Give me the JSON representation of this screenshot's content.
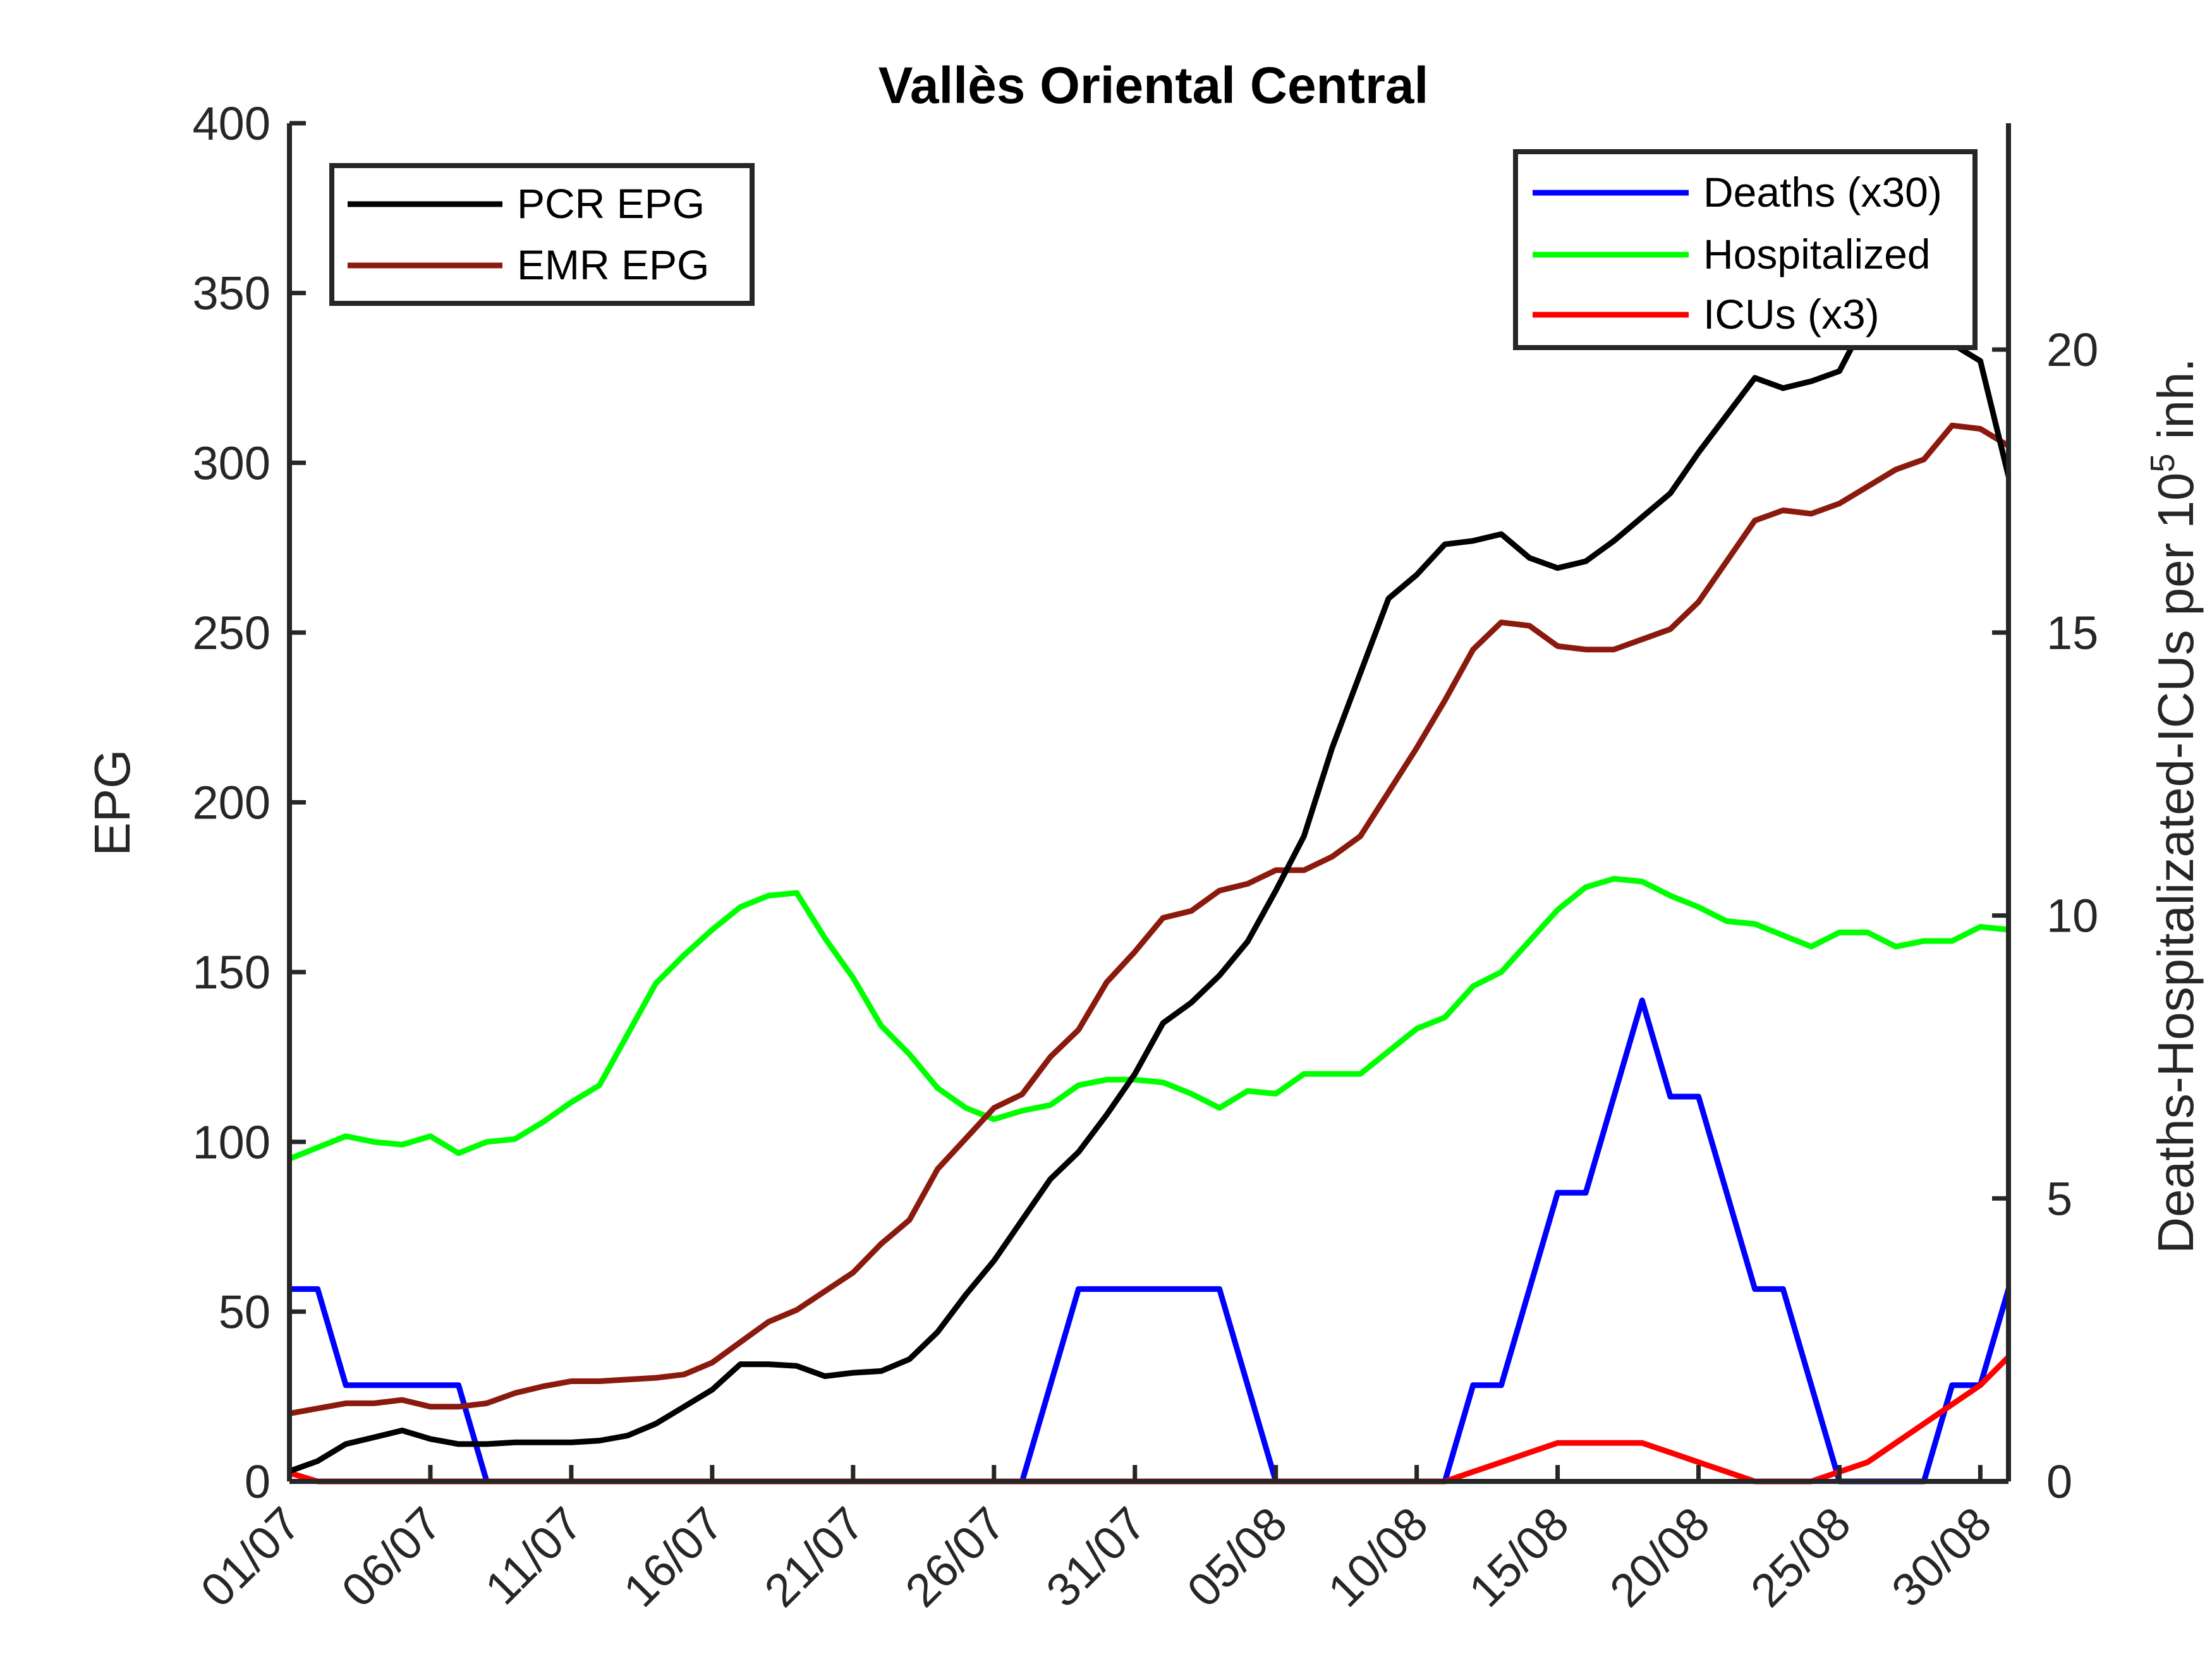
{
  "chart_data": {
    "type": "line",
    "title": "Vallès Oriental Central",
    "ylabel_left": "EPG",
    "ylabel_right": {
      "base": "Deaths-Hospitalizated-ICUs per 10",
      "superscript": "5",
      "suffix": " inh."
    },
    "ylim_left": [
      0,
      400
    ],
    "ylim_right": [
      0,
      24
    ],
    "yticks_left": [
      "0",
      "50",
      "100",
      "150",
      "200",
      "250",
      "300",
      "350",
      "400"
    ],
    "yticks_right": [
      "0",
      "5",
      "10",
      "15",
      "20"
    ],
    "x_start": "01/07",
    "x_end": "31/08",
    "x_ticks": [
      "01/07",
      "06/07",
      "11/07",
      "16/07",
      "21/07",
      "26/07",
      "31/07",
      "05/08",
      "10/08",
      "15/08",
      "20/08",
      "25/08",
      "30/08"
    ],
    "grid": false,
    "legend_left_position": "top-left",
    "legend_right_position": "top-right",
    "series": [
      {
        "name": "PCR EPG",
        "axis": "left",
        "color": "#000000",
        "values": [
          3,
          6,
          11,
          13,
          15,
          12.5,
          11,
          11,
          11.5,
          11.5,
          11.5,
          12,
          13.5,
          17,
          22,
          27,
          34.5,
          34.5,
          34,
          31,
          32,
          32.5,
          36,
          44,
          55,
          65,
          77,
          89,
          97,
          108,
          120,
          135,
          141,
          149,
          159,
          174,
          190,
          216,
          238,
          260,
          267,
          276,
          277,
          279,
          272,
          269,
          271,
          277,
          284,
          291,
          303,
          314,
          325,
          322,
          324,
          327,
          343,
          360,
          340,
          335,
          330,
          296
        ]
      },
      {
        "name": "EMR EPG",
        "axis": "left",
        "color": "#8b1a0e",
        "values": [
          20,
          21.5,
          23,
          23,
          24,
          22,
          22,
          23,
          26,
          28,
          29.5,
          29.5,
          30,
          30.5,
          31.5,
          35,
          41,
          47,
          50.5,
          56,
          61.5,
          70,
          77,
          92,
          101,
          110,
          114,
          125,
          133,
          147,
          156,
          166,
          168,
          174,
          176,
          180,
          180,
          184,
          190,
          203,
          216,
          230,
          245,
          253,
          252,
          246,
          245,
          245,
          248,
          251,
          259,
          271,
          283,
          286,
          285,
          288,
          293,
          298,
          301,
          311,
          310,
          305
        ]
      },
      {
        "name": "Hospitalized",
        "axis": "right",
        "color": "#00ff00",
        "values": [
          5.7,
          5.9,
          6.1,
          6.0,
          5.95,
          6.1,
          5.8,
          6.0,
          6.05,
          6.35,
          6.7,
          7.0,
          7.9,
          8.8,
          9.3,
          9.75,
          10.15,
          10.35,
          10.4,
          9.6,
          8.9,
          8.05,
          7.55,
          6.95,
          6.6,
          6.4,
          6.55,
          6.65,
          7.0,
          7.1,
          7.1,
          7.05,
          6.85,
          6.6,
          6.9,
          6.85,
          7.2,
          7.2,
          7.2,
          7.6,
          8.0,
          8.2,
          8.75,
          9.0,
          9.55,
          10.1,
          10.5,
          10.65,
          10.6,
          10.35,
          10.15,
          9.9,
          9.85,
          9.65,
          9.45,
          9.7,
          9.7,
          9.45,
          9.55,
          9.55,
          9.8,
          9.75
        ]
      },
      {
        "name": "Deaths (x30)",
        "axis": "right",
        "color": "#0000ff",
        "values": [
          3.4,
          3.4,
          1.7,
          1.7,
          1.7,
          1.7,
          1.7,
          0,
          0,
          0,
          0,
          0,
          0,
          0,
          0,
          0,
          0,
          0,
          0,
          0,
          0,
          0,
          0,
          0,
          0,
          0,
          0,
          1.7,
          3.4,
          3.4,
          3.4,
          3.4,
          3.4,
          3.4,
          1.7,
          0,
          0,
          0,
          0,
          0,
          0,
          0,
          1.7,
          1.7,
          3.4,
          5.1,
          5.1,
          6.8,
          8.5,
          6.8,
          6.8,
          5.1,
          3.4,
          3.4,
          1.7,
          0,
          0,
          0,
          0,
          1.7,
          1.7,
          3.4
        ]
      },
      {
        "name": "ICUs (x3)",
        "axis": "right",
        "color": "#ff0000",
        "values": [
          0.15,
          0,
          0,
          0,
          0,
          0,
          0,
          0,
          0,
          0,
          0,
          0,
          0,
          0,
          0,
          0,
          0,
          0,
          0,
          0,
          0,
          0,
          0,
          0,
          0,
          0,
          0,
          0,
          0,
          0,
          0,
          0,
          0,
          0,
          0,
          0,
          0,
          0,
          0,
          0,
          0,
          0,
          0.17,
          0.34,
          0.51,
          0.68,
          0.68,
          0.68,
          0.68,
          0.51,
          0.34,
          0.17,
          0,
          0,
          0,
          0.17,
          0.34,
          0.68,
          1.02,
          1.36,
          1.7,
          2.2
        ]
      }
    ]
  }
}
